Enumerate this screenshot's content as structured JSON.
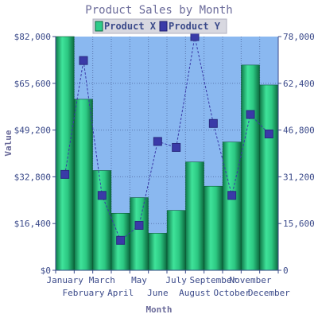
{
  "chart_data": {
    "type": "bar",
    "title": "Product Sales by Month",
    "xlabel": "Month",
    "ylabel": "Value",
    "categories": [
      "January",
      "February",
      "March",
      "April",
      "May",
      "June",
      "July",
      "August",
      "September",
      "October",
      "November",
      "December"
    ],
    "y_ticks_left": [
      "$0",
      "$16,400",
      "$32,800",
      "$49,200",
      "$65,600",
      "$82,000"
    ],
    "y_ticks_right": [
      "0",
      "15,600",
      "31,200",
      "46,800",
      "62,400",
      "78,000"
    ],
    "ylim": [
      0,
      82000
    ],
    "y2lim": [
      0,
      78000
    ],
    "grid": true,
    "legend_position": "top",
    "series": [
      {
        "name": "Product X",
        "type": "bar",
        "axis": "left",
        "color": "#2ecc8a",
        "values": [
          82000,
          60000,
          35000,
          20000,
          25500,
          13000,
          21000,
          38000,
          29500,
          45000,
          72000,
          65000
        ]
      },
      {
        "name": "Product Y",
        "type": "line",
        "axis": "right",
        "color": "#3a3aa8",
        "line_style": "dashed",
        "values": [
          32000,
          70000,
          25000,
          10000,
          15000,
          43000,
          41000,
          78000,
          49000,
          25000,
          52000,
          45500
        ]
      }
    ]
  },
  "colors": {
    "plot_background": "#8ab8f0",
    "grid_color": "#5a78b0"
  }
}
